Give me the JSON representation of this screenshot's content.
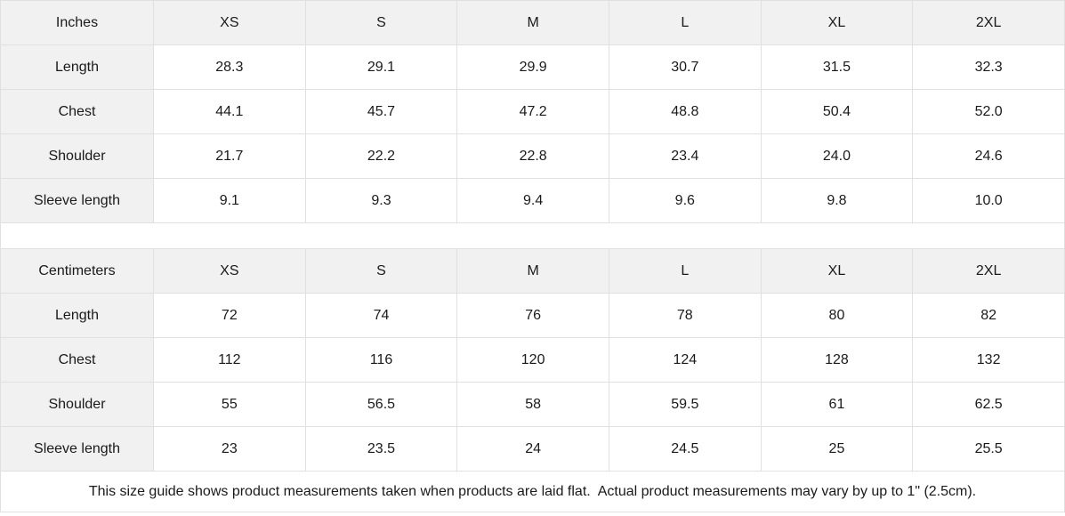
{
  "inches_table": {
    "unit_label": "Inches",
    "sizes": [
      "XS",
      "S",
      "M",
      "L",
      "XL",
      "2XL"
    ],
    "rows": [
      {
        "label": "Length",
        "values": [
          "28.3",
          "29.1",
          "29.9",
          "30.7",
          "31.5",
          "32.3"
        ]
      },
      {
        "label": "Chest",
        "values": [
          "44.1",
          "45.7",
          "47.2",
          "48.8",
          "50.4",
          "52.0"
        ]
      },
      {
        "label": "Shoulder",
        "values": [
          "21.7",
          "22.2",
          "22.8",
          "23.4",
          "24.0",
          "24.6"
        ]
      },
      {
        "label": "Sleeve length",
        "values": [
          "9.1",
          "9.3",
          "9.4",
          "9.6",
          "9.8",
          "10.0"
        ]
      }
    ]
  },
  "cm_table": {
    "unit_label": "Centimeters",
    "sizes": [
      "XS",
      "S",
      "M",
      "L",
      "XL",
      "2XL"
    ],
    "rows": [
      {
        "label": "Length",
        "values": [
          "72",
          "74",
          "76",
          "78",
          "80",
          "82"
        ]
      },
      {
        "label": "Chest",
        "values": [
          "112",
          "116",
          "120",
          "124",
          "128",
          "132"
        ]
      },
      {
        "label": "Shoulder",
        "values": [
          "55",
          "56.5",
          "58",
          "59.5",
          "61",
          "62.5"
        ]
      },
      {
        "label": "Sleeve length",
        "values": [
          "23",
          "23.5",
          "24",
          "24.5",
          "25",
          "25.5"
        ]
      }
    ]
  },
  "footer": {
    "note": "This size guide shows product measurements taken when products are laid flat.  Actual product measurements may vary by up to 1\" (2.5cm)."
  },
  "colors": {
    "header_bg": "#f1f1f1",
    "border": "#e0e0e0",
    "text": "#1a1a1a",
    "cell_bg": "#ffffff"
  }
}
